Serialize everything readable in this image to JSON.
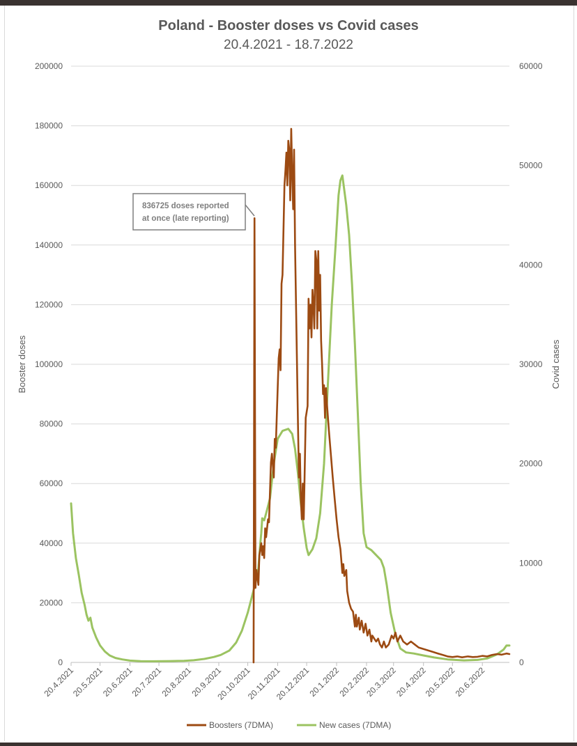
{
  "chart_data": {
    "type": "line",
    "title": "Poland - Booster doses vs Covid cases",
    "subtitle": "20.4.2021 - 18.7.2022",
    "ylabel_left": "Booster doses",
    "ylabel_right": "Covid cases",
    "ylim_left": [
      0,
      200000
    ],
    "ylim_right": [
      0,
      60000
    ],
    "yticks_left": [
      "0",
      "20000",
      "40000",
      "60000",
      "80000",
      "100000",
      "120000",
      "140000",
      "160000",
      "180000",
      "200000"
    ],
    "yticks_right": [
      "0",
      "10000",
      "20000",
      "30000",
      "40000",
      "50000",
      "60000"
    ],
    "x_tick_labels": [
      "20.4.2021",
      "20.5.2021",
      "20.6.2021",
      "20.7.2021",
      "20.8.2021",
      "20.9.2021",
      "20.10.2021",
      "20.11.2021",
      "20.12.2021",
      "20.1.2022",
      "20.2.2022",
      "20.3.2022",
      "20.4.2022",
      "20.5.2022",
      "20.6.2022"
    ],
    "x_range": [
      "2021-04-20",
      "2022-07-18"
    ],
    "grid": "horizontal",
    "legend_position": "bottom",
    "annotation": {
      "lines": [
        "836725 doses reported",
        "at once (late reporting)"
      ]
    },
    "series": [
      {
        "name": "Boosters (7DMA)",
        "axis": "left",
        "color": "#9c4a12",
        "points": [
          [
            "2021-10-26",
            0
          ],
          [
            "2021-10-27",
            149000
          ],
          [
            "2021-10-28",
            25000
          ],
          [
            "2021-10-29",
            31000
          ],
          [
            "2021-10-31",
            26000
          ],
          [
            "2021-11-01",
            36000
          ],
          [
            "2021-11-03",
            40000
          ],
          [
            "2021-11-04",
            36000
          ],
          [
            "2021-11-05",
            39000
          ],
          [
            "2021-11-06",
            35000
          ],
          [
            "2021-11-07",
            45000
          ],
          [
            "2021-11-08",
            42000
          ],
          [
            "2021-11-10",
            48000
          ],
          [
            "2021-11-11",
            47000
          ],
          [
            "2021-11-13",
            67000
          ],
          [
            "2021-11-14",
            70000
          ],
          [
            "2021-11-16",
            62000
          ],
          [
            "2021-11-17",
            75000
          ],
          [
            "2021-11-18",
            72000
          ],
          [
            "2021-11-20",
            92000
          ],
          [
            "2021-11-21",
            102000
          ],
          [
            "2021-11-22",
            105000
          ],
          [
            "2021-11-23",
            98000
          ],
          [
            "2021-11-24",
            127000
          ],
          [
            "2021-11-25",
            130000
          ],
          [
            "2021-11-26",
            145000
          ],
          [
            "2021-11-27",
            160000
          ],
          [
            "2021-11-28",
            165000
          ],
          [
            "2021-11-29",
            171000
          ],
          [
            "2021-11-30",
            160000
          ],
          [
            "2021-12-01",
            175000
          ],
          [
            "2021-12-02",
            172000
          ],
          [
            "2021-12-03",
            155000
          ],
          [
            "2021-12-04",
            179000
          ],
          [
            "2021-12-05",
            164000
          ],
          [
            "2021-12-06",
            152000
          ],
          [
            "2021-12-07",
            172000
          ],
          [
            "2021-12-08",
            140000
          ],
          [
            "2021-12-09",
            120000
          ],
          [
            "2021-12-10",
            100000
          ],
          [
            "2021-12-11",
            80000
          ],
          [
            "2021-12-12",
            62000
          ],
          [
            "2021-12-13",
            70000
          ],
          [
            "2021-12-14",
            55000
          ],
          [
            "2021-12-15",
            48000
          ],
          [
            "2021-12-16",
            60000
          ],
          [
            "2021-12-17",
            48000
          ],
          [
            "2021-12-19",
            82000
          ],
          [
            "2021-12-21",
            86000
          ],
          [
            "2021-12-22",
            122000
          ],
          [
            "2021-12-23",
            112000
          ],
          [
            "2021-12-24",
            120000
          ],
          [
            "2021-12-25",
            109000
          ],
          [
            "2021-12-26",
            125000
          ],
          [
            "2021-12-27",
            120000
          ],
          [
            "2021-12-28",
            112000
          ],
          [
            "2021-12-29",
            138000
          ],
          [
            "2021-12-30",
            135000
          ],
          [
            "2021-12-31",
            112000
          ],
          [
            "2022-01-01",
            138000
          ],
          [
            "2022-01-02",
            118000
          ],
          [
            "2022-01-03",
            130000
          ],
          [
            "2022-01-04",
            108000
          ],
          [
            "2022-01-05",
            100000
          ],
          [
            "2022-01-06",
            90000
          ],
          [
            "2022-01-07",
            93000
          ],
          [
            "2022-01-08",
            82000
          ],
          [
            "2022-01-09",
            92000
          ],
          [
            "2022-01-10",
            87000
          ],
          [
            "2022-01-12",
            78000
          ],
          [
            "2022-01-14",
            70000
          ],
          [
            "2022-01-16",
            62000
          ],
          [
            "2022-01-18",
            55000
          ],
          [
            "2022-01-20",
            48000
          ],
          [
            "2022-01-22",
            42000
          ],
          [
            "2022-01-24",
            38000
          ],
          [
            "2022-01-26",
            30000
          ],
          [
            "2022-01-27",
            33000
          ],
          [
            "2022-01-28",
            29000
          ],
          [
            "2022-01-30",
            31000
          ],
          [
            "2022-01-31",
            24000
          ],
          [
            "2022-02-02",
            20000
          ],
          [
            "2022-02-04",
            18000
          ],
          [
            "2022-02-06",
            17000
          ],
          [
            "2022-02-08",
            12000
          ],
          [
            "2022-02-09",
            16000
          ],
          [
            "2022-02-10",
            12000
          ],
          [
            "2022-02-12",
            15000
          ],
          [
            "2022-02-13",
            11000
          ],
          [
            "2022-02-15",
            14000
          ],
          [
            "2022-02-17",
            10000
          ],
          [
            "2022-02-19",
            13000
          ],
          [
            "2022-02-21",
            9000
          ],
          [
            "2022-02-23",
            11000
          ],
          [
            "2022-02-25",
            7000
          ],
          [
            "2022-02-26",
            9000
          ],
          [
            "2022-02-28",
            8000
          ],
          [
            "2022-03-02",
            7000
          ],
          [
            "2022-03-04",
            8000
          ],
          [
            "2022-03-06",
            6000
          ],
          [
            "2022-03-08",
            5000
          ],
          [
            "2022-03-10",
            7000
          ],
          [
            "2022-03-12",
            5000
          ],
          [
            "2022-03-15",
            6000
          ],
          [
            "2022-03-18",
            9000
          ],
          [
            "2022-03-20",
            8000
          ],
          [
            "2022-03-22",
            10000
          ],
          [
            "2022-03-24",
            7000
          ],
          [
            "2022-03-27",
            9000
          ],
          [
            "2022-03-30",
            7000
          ],
          [
            "2022-04-03",
            6000
          ],
          [
            "2022-04-07",
            7000
          ],
          [
            "2022-04-11",
            6000
          ],
          [
            "2022-04-15",
            5000
          ],
          [
            "2022-04-20",
            4500
          ],
          [
            "2022-04-25",
            4000
          ],
          [
            "2022-04-30",
            3500
          ],
          [
            "2022-05-05",
            3000
          ],
          [
            "2022-05-10",
            2500
          ],
          [
            "2022-05-15",
            2000
          ],
          [
            "2022-05-20",
            1800
          ],
          [
            "2022-05-25",
            2000
          ],
          [
            "2022-05-30",
            1700
          ],
          [
            "2022-06-05",
            2000
          ],
          [
            "2022-06-10",
            1800
          ],
          [
            "2022-06-15",
            1900
          ],
          [
            "2022-06-20",
            2200
          ],
          [
            "2022-06-25",
            2000
          ],
          [
            "2022-06-30",
            2500
          ],
          [
            "2022-07-05",
            2800
          ],
          [
            "2022-07-10",
            2600
          ],
          [
            "2022-07-15",
            3000
          ],
          [
            "2022-07-18",
            2800
          ]
        ]
      },
      {
        "name": "New cases (7DMA)",
        "axis": "right",
        "color": "#9bc361",
        "points": [
          [
            "2021-04-20",
            16000
          ],
          [
            "2021-04-22",
            13000
          ],
          [
            "2021-04-25",
            10500
          ],
          [
            "2021-04-28",
            8800
          ],
          [
            "2021-05-01",
            7000
          ],
          [
            "2021-05-04",
            5800
          ],
          [
            "2021-05-06",
            4800
          ],
          [
            "2021-05-08",
            4200
          ],
          [
            "2021-05-10",
            4500
          ],
          [
            "2021-05-12",
            3500
          ],
          [
            "2021-05-16",
            2500
          ],
          [
            "2021-05-20",
            1700
          ],
          [
            "2021-05-25",
            1100
          ],
          [
            "2021-05-30",
            700
          ],
          [
            "2021-06-05",
            450
          ],
          [
            "2021-06-12",
            300
          ],
          [
            "2021-06-20",
            180
          ],
          [
            "2021-07-01",
            120
          ],
          [
            "2021-07-15",
            110
          ],
          [
            "2021-08-01",
            130
          ],
          [
            "2021-08-15",
            160
          ],
          [
            "2021-08-25",
            220
          ],
          [
            "2021-09-05",
            350
          ],
          [
            "2021-09-15",
            550
          ],
          [
            "2021-09-22",
            750
          ],
          [
            "2021-10-01",
            1200
          ],
          [
            "2021-10-08",
            2000
          ],
          [
            "2021-10-14",
            3200
          ],
          [
            "2021-10-20",
            5000
          ],
          [
            "2021-10-24",
            6500
          ],
          [
            "2021-10-28",
            8000
          ],
          [
            "2021-10-31",
            9500
          ],
          [
            "2021-11-02",
            12000
          ],
          [
            "2021-11-03",
            13000
          ],
          [
            "2021-11-04",
            14500
          ],
          [
            "2021-11-06",
            14300
          ],
          [
            "2021-11-08",
            15000
          ],
          [
            "2021-11-12",
            16500
          ],
          [
            "2021-11-16",
            20000
          ],
          [
            "2021-11-20",
            22500
          ],
          [
            "2021-11-25",
            23300
          ],
          [
            "2021-12-01",
            23500
          ],
          [
            "2021-12-05",
            23000
          ],
          [
            "2021-12-08",
            21500
          ],
          [
            "2021-12-11",
            19000
          ],
          [
            "2021-12-14",
            16000
          ],
          [
            "2021-12-17",
            13500
          ],
          [
            "2021-12-20",
            11500
          ],
          [
            "2021-12-22",
            10800
          ],
          [
            "2021-12-26",
            11400
          ],
          [
            "2021-12-30",
            12500
          ],
          [
            "2022-01-03",
            15000
          ],
          [
            "2022-01-07",
            20000
          ],
          [
            "2022-01-11",
            28000
          ],
          [
            "2022-01-15",
            36000
          ],
          [
            "2022-01-19",
            42000
          ],
          [
            "2022-01-22",
            47000
          ],
          [
            "2022-01-24",
            48500
          ],
          [
            "2022-01-26",
            49000
          ],
          [
            "2022-01-28",
            47500
          ],
          [
            "2022-01-30",
            46000
          ],
          [
            "2022-02-02",
            43000
          ],
          [
            "2022-02-05",
            38000
          ],
          [
            "2022-02-08",
            32000
          ],
          [
            "2022-02-11",
            25000
          ],
          [
            "2022-02-14",
            18000
          ],
          [
            "2022-02-17",
            13000
          ],
          [
            "2022-02-20",
            11600
          ],
          [
            "2022-02-25",
            11300
          ],
          [
            "2022-03-02",
            10800
          ],
          [
            "2022-03-07",
            10300
          ],
          [
            "2022-03-10",
            9500
          ],
          [
            "2022-03-13",
            7800
          ],
          [
            "2022-03-17",
            5000
          ],
          [
            "2022-03-22",
            2800
          ],
          [
            "2022-03-27",
            1400
          ],
          [
            "2022-04-02",
            1000
          ],
          [
            "2022-04-10",
            900
          ],
          [
            "2022-04-20",
            700
          ],
          [
            "2022-05-01",
            500
          ],
          [
            "2022-05-15",
            300
          ],
          [
            "2022-06-01",
            200
          ],
          [
            "2022-06-15",
            250
          ],
          [
            "2022-06-25",
            400
          ],
          [
            "2022-07-05",
            800
          ],
          [
            "2022-07-12",
            1300
          ],
          [
            "2022-07-15",
            1700
          ],
          [
            "2022-07-18",
            1700
          ]
        ]
      }
    ]
  }
}
